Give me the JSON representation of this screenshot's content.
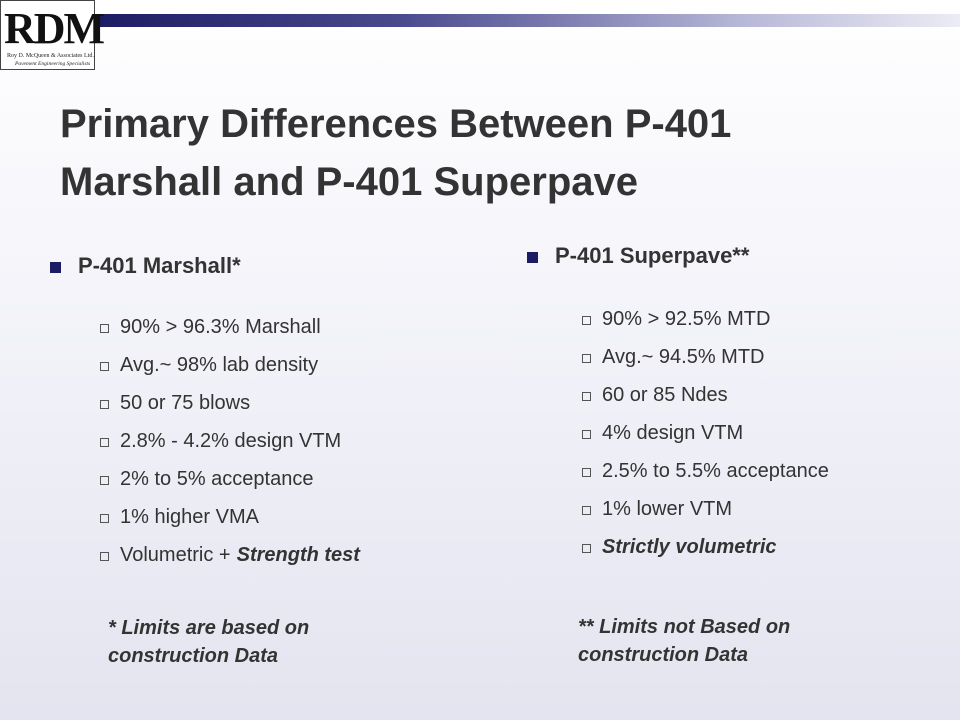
{
  "logo": {
    "mark": "RDM",
    "company": "Roy D. McQueen & Associates Ltd.",
    "tagline": "Pavement Engineering Specialists"
  },
  "title": [
    "Primary Differences Between P-401",
    "Marshall and P-401 Superpave"
  ],
  "left": {
    "heading": "P-401 Marshall*",
    "items": [
      "90% > 96.3% Marshall",
      "Avg.~ 98% lab density",
      "50 or 75 blows",
      "2.8% - 4.2% design VTM",
      "2% to 5% acceptance",
      "1% higher VMA",
      [
        "Volumetric +",
        "Strength test"
      ]
    ],
    "note": [
      "* Limits are based on",
      "construction Data"
    ]
  },
  "right": {
    "heading": "P-401 Superpave**",
    "items": [
      "90% > 92.5% MTD",
      "Avg.~ 94.5% MTD",
      "60 or 85 Ndes",
      "4% design VTM",
      "2.5% to 5.5% acceptance",
      "1% lower VTM",
      "Strictly volumetric"
    ],
    "note": [
      "** Limits not Based on",
      "construction Data"
    ]
  }
}
